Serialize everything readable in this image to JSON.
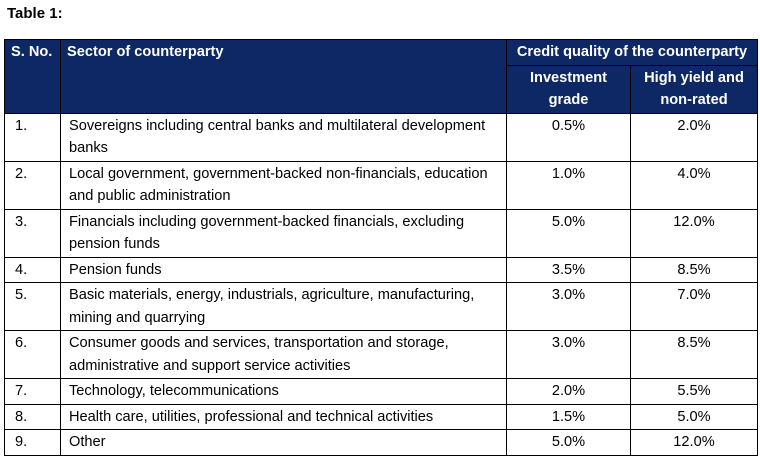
{
  "caption": "Table 1:",
  "headers": {
    "sno": "S. No.",
    "sector": "Sector of counterparty",
    "credit_quality": "Credit quality of the counterparty",
    "investment_grade": "Investment grade",
    "high_yield": "High yield and non-rated"
  },
  "rows": [
    {
      "sno": "1.",
      "sector": "Sovereigns including central banks and multilateral development banks",
      "investment": "0.5%",
      "high_yield": "2.0%"
    },
    {
      "sno": "2.",
      "sector": "Local government, government-backed non-financials, education and public administration",
      "investment": "1.0%",
      "high_yield": "4.0%"
    },
    {
      "sno": "3.",
      "sector": "Financials including government-backed financials, excluding pension funds",
      "investment": "5.0%",
      "high_yield": "12.0%"
    },
    {
      "sno": "4.",
      "sector": "Pension funds",
      "investment": "3.5%",
      "high_yield": "8.5%"
    },
    {
      "sno": "5.",
      "sector": "Basic materials, energy, industrials, agriculture, manufacturing, mining and quarrying",
      "investment": "3.0%",
      "high_yield": "7.0%"
    },
    {
      "sno": "6.",
      "sector": "Consumer goods and services, transportation and storage, administrative and support service activities",
      "investment": "3.0%",
      "high_yield": "8.5%"
    },
    {
      "sno": "7.",
      "sector": "Technology, telecommunications",
      "investment": "2.0%",
      "high_yield": "5.5%"
    },
    {
      "sno": "8.",
      "sector": "Health care, utilities, professional and technical activities",
      "investment": "1.5%",
      "high_yield": "5.0%"
    },
    {
      "sno": "9.",
      "sector": "Other",
      "investment": "5.0%",
      "high_yield": "12.0%"
    }
  ]
}
